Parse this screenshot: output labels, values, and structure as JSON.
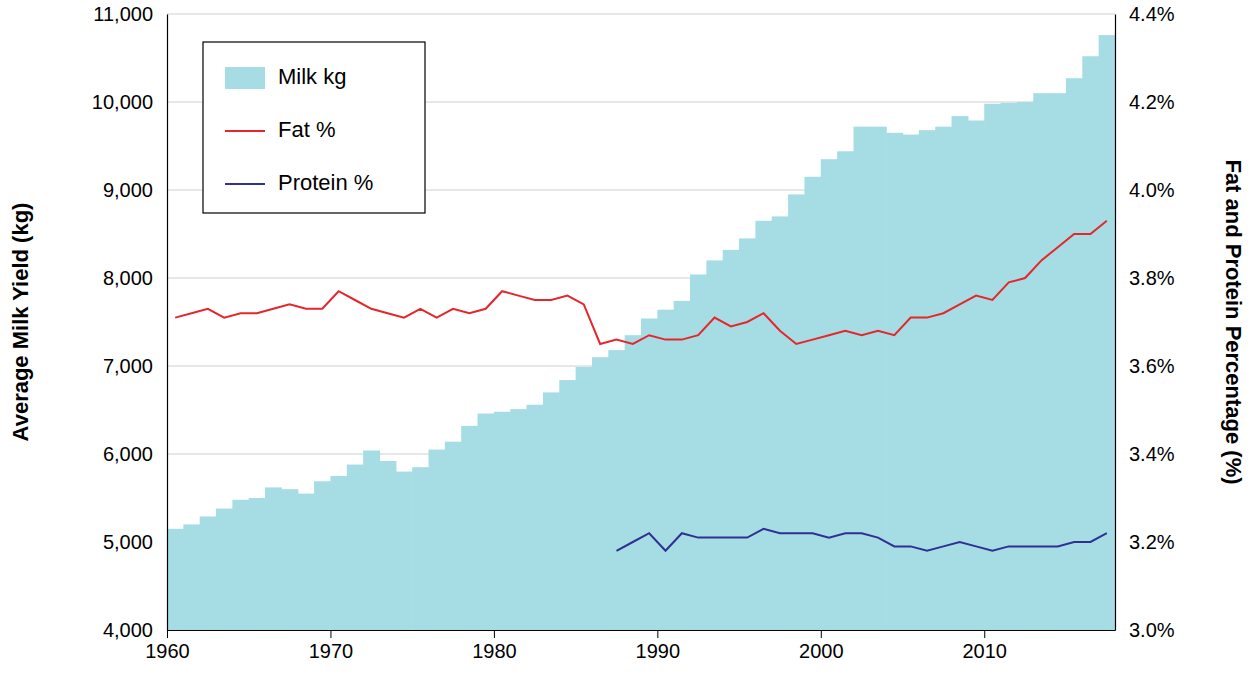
{
  "chart_data": {
    "type": "bar",
    "xlabel": null,
    "ylabel": "Average Milk Yield (kg)",
    "y2label": "Fat and Protein Percentage (%)",
    "x": [
      1960,
      1961,
      1962,
      1963,
      1964,
      1965,
      1966,
      1967,
      1968,
      1969,
      1970,
      1971,
      1972,
      1973,
      1974,
      1975,
      1976,
      1977,
      1978,
      1979,
      1980,
      1981,
      1982,
      1983,
      1984,
      1985,
      1986,
      1987,
      1988,
      1989,
      1990,
      1991,
      1992,
      1993,
      1994,
      1995,
      1996,
      1997,
      1998,
      1999,
      2000,
      2001,
      2002,
      2003,
      2004,
      2005,
      2006,
      2007,
      2008,
      2009,
      2010,
      2011,
      2012,
      2013,
      2014,
      2015,
      2016,
      2017
    ],
    "xlim": [
      1960,
      2018
    ],
    "xticks": [
      1960,
      1970,
      1980,
      1990,
      2000,
      2010
    ],
    "ylim": [
      4000,
      11000
    ],
    "yticks": [
      {
        "value": 4000,
        "label": "4,000"
      },
      {
        "value": 5000,
        "label": "5,000"
      },
      {
        "value": 6000,
        "label": "6,000"
      },
      {
        "value": 7000,
        "label": "7,000"
      },
      {
        "value": 8000,
        "label": "8,000"
      },
      {
        "value": 9000,
        "label": "9,000"
      },
      {
        "value": 10000,
        "label": "10,000"
      },
      {
        "value": 11000,
        "label": "11,000"
      }
    ],
    "y2lim": [
      3.0,
      4.4
    ],
    "y2ticks": [
      {
        "value": 3.0,
        "label": "3.0%"
      },
      {
        "value": 3.2,
        "label": "3.2%"
      },
      {
        "value": 3.4,
        "label": "3.4%"
      },
      {
        "value": 3.6,
        "label": "3.6%"
      },
      {
        "value": 3.8,
        "label": "3.8%"
      },
      {
        "value": 4.0,
        "label": "4.0%"
      },
      {
        "value": 4.2,
        "label": "4.2%"
      },
      {
        "value": 4.4,
        "label": "4.4%"
      }
    ],
    "grid": true,
    "legend": "upper left",
    "series": [
      {
        "name": "Milk kg",
        "type": "bar",
        "color": "#a6dce3",
        "values": [
          5150,
          5200,
          5290,
          5380,
          5480,
          5500,
          5620,
          5600,
          5550,
          5690,
          5750,
          5880,
          6040,
          5920,
          5800,
          5850,
          6050,
          6140,
          6320,
          6460,
          6480,
          6510,
          6560,
          6700,
          6840,
          6990,
          7100,
          7180,
          7350,
          7540,
          7640,
          7740,
          8040,
          8200,
          8320,
          8450,
          8650,
          8700,
          8950,
          9150,
          9350,
          9440,
          9720,
          9720,
          9650,
          9630,
          9680,
          9720,
          9840,
          9790,
          9980,
          9990,
          10000,
          10100,
          10100,
          10270,
          10520,
          10760
        ]
      },
      {
        "name": "Fat %",
        "type": "line",
        "color": "#e5262b",
        "axis": "y2",
        "values": [
          3.71,
          3.72,
          3.73,
          3.71,
          3.72,
          3.72,
          3.73,
          3.74,
          3.73,
          3.73,
          3.77,
          3.75,
          3.73,
          3.72,
          3.71,
          3.73,
          3.71,
          3.73,
          3.72,
          3.73,
          3.77,
          3.76,
          3.75,
          3.75,
          3.76,
          3.74,
          3.65,
          3.66,
          3.65,
          3.67,
          3.66,
          3.66,
          3.67,
          3.71,
          3.69,
          3.7,
          3.72,
          3.68,
          3.65,
          3.66,
          3.67,
          3.68,
          3.67,
          3.68,
          3.67,
          3.71,
          3.71,
          3.72,
          3.74,
          3.76,
          3.75,
          3.79,
          3.8,
          3.84,
          3.87,
          3.9,
          3.9,
          3.93
        ]
      },
      {
        "name": "Protein %",
        "type": "line",
        "color": "#2e3192",
        "axis": "y2",
        "values": [
          null,
          null,
          null,
          null,
          null,
          null,
          null,
          null,
          null,
          null,
          null,
          null,
          null,
          null,
          null,
          null,
          null,
          null,
          null,
          null,
          null,
          null,
          null,
          null,
          null,
          null,
          null,
          3.18,
          3.2,
          3.22,
          3.18,
          3.22,
          3.21,
          3.21,
          3.21,
          3.21,
          3.23,
          3.22,
          3.22,
          3.22,
          3.21,
          3.22,
          3.22,
          3.21,
          3.19,
          3.19,
          3.18,
          3.19,
          3.2,
          3.19,
          3.18,
          3.19,
          3.19,
          3.19,
          3.19,
          3.2,
          3.2,
          3.22
        ]
      }
    ]
  }
}
